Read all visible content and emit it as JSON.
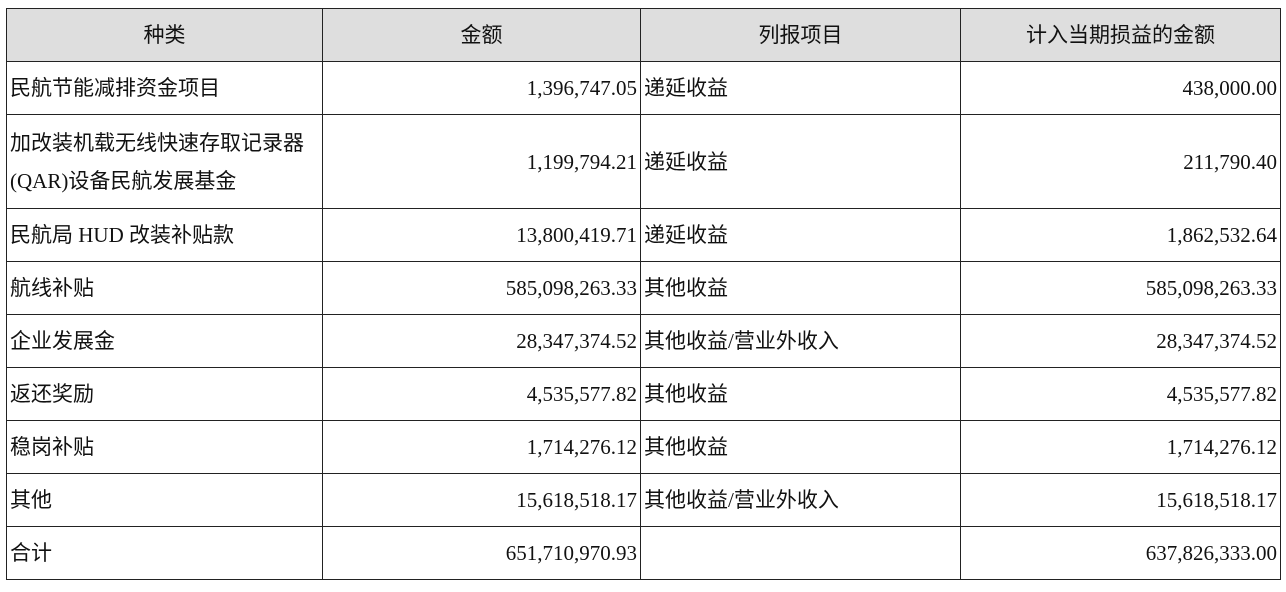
{
  "table": {
    "header": [
      "种类",
      "金额",
      "列报项目",
      "计入当期损益的金额"
    ],
    "rows": [
      [
        "民航节能减排资金项目",
        "1,396,747.05",
        "递延收益",
        "438,000.00"
      ],
      [
        "加改装机载无线快速存取记录器(QAR)设备民航发展基金",
        "1,199,794.21",
        "递延收益",
        "211,790.40"
      ],
      [
        "民航局 HUD 改装补贴款",
        "13,800,419.71",
        "递延收益",
        "1,862,532.64"
      ],
      [
        "航线补贴",
        "585,098,263.33",
        "其他收益",
        "585,098,263.33"
      ],
      [
        "企业发展金",
        "28,347,374.52",
        "其他收益/营业外收入",
        "28,347,374.52"
      ],
      [
        "返还奖励",
        "4,535,577.82",
        "其他收益",
        "4,535,577.82"
      ],
      [
        "稳岗补贴",
        "1,714,276.12",
        "其他收益",
        "1,714,276.12"
      ],
      [
        "其他",
        "15,618,518.17",
        "其他收益/营业外收入",
        "15,618,518.17"
      ],
      [
        "合计",
        "651,710,970.93",
        null,
        "637,826,333.00"
      ]
    ]
  }
}
